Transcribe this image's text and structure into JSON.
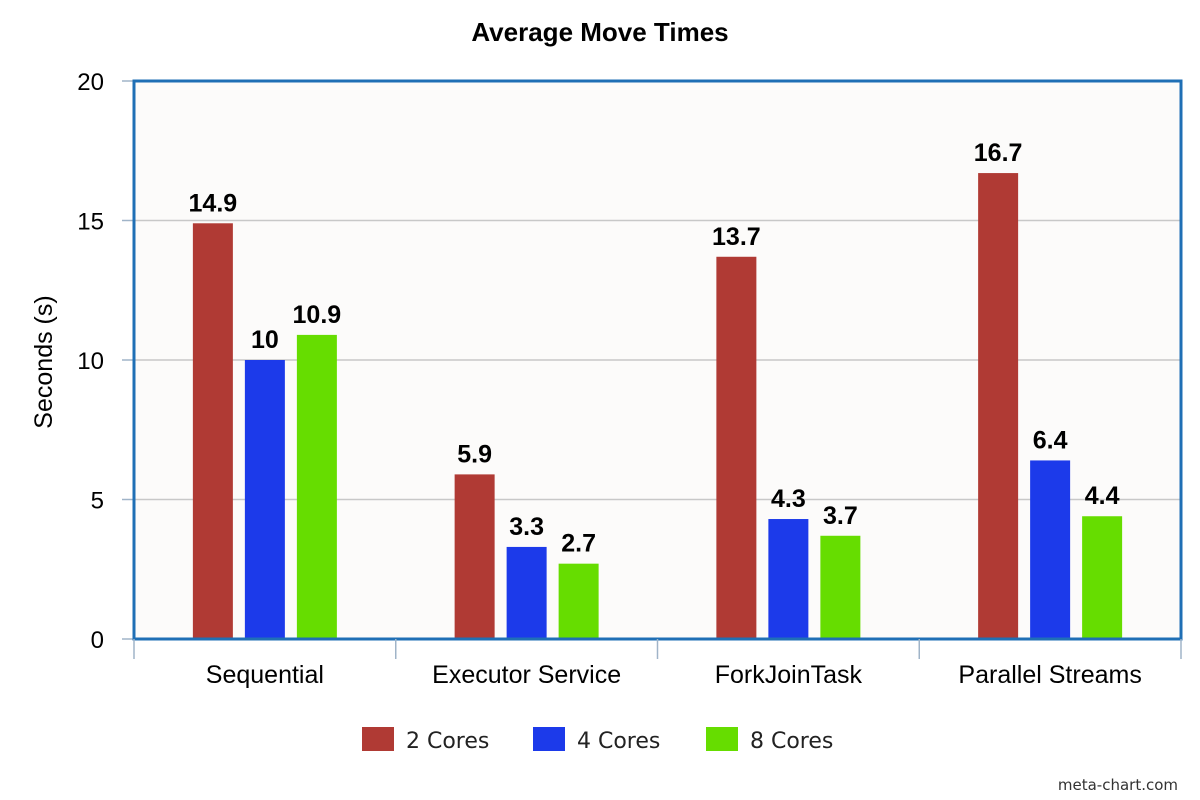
{
  "watermark": "meta-chart.com",
  "colors": {
    "plot_background": "#fcfbfa",
    "plot_border": "#1f6fb5",
    "grid": "#c8c8c8",
    "axis": "#a0b4c8"
  },
  "chart_data": {
    "type": "bar",
    "title": "Average Move Times",
    "xlabel": "",
    "ylabel": "Seconds (s)",
    "ylim": [
      0,
      20
    ],
    "yticks": [
      0,
      5,
      10,
      15,
      20
    ],
    "grid": true,
    "legend_position": "bottom",
    "categories": [
      "Sequential",
      "Executor Service",
      "ForkJoinTask",
      "Parallel Streams"
    ],
    "series": [
      {
        "name": "2 Cores",
        "color": "#b03a34",
        "values": [
          14.9,
          5.9,
          13.7,
          16.7
        ]
      },
      {
        "name": "4 Cores",
        "color": "#1c3aea",
        "values": [
          10,
          3.3,
          4.3,
          6.4
        ]
      },
      {
        "name": "8 Cores",
        "color": "#66dd00",
        "values": [
          10.9,
          2.7,
          3.7,
          4.4
        ]
      }
    ]
  }
}
